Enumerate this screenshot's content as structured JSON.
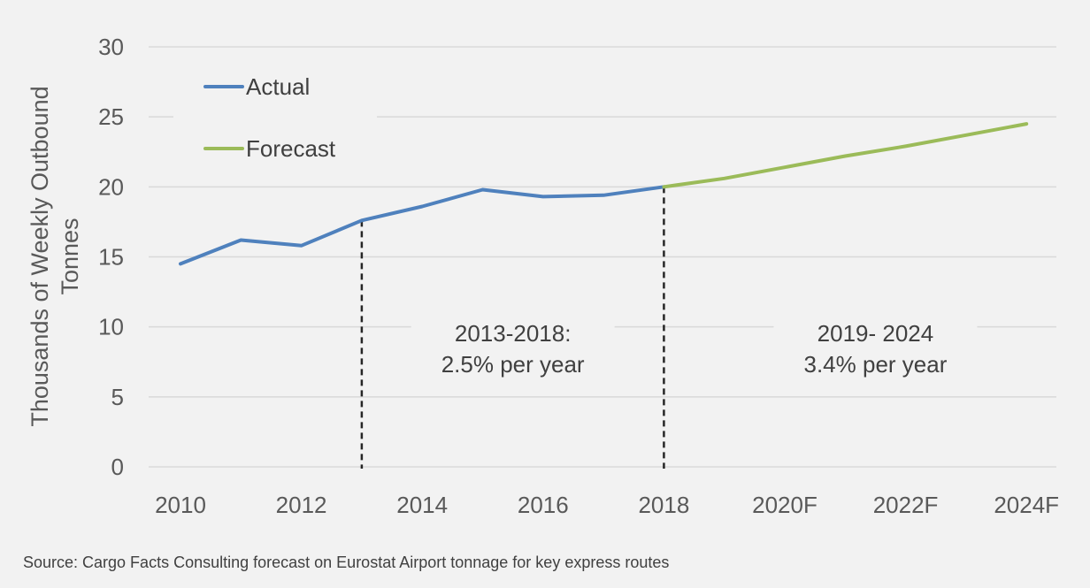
{
  "chart_data": {
    "type": "line",
    "x": [
      "2010",
      "2011",
      "2012",
      "2013",
      "2014",
      "2015",
      "2016",
      "2017",
      "2018",
      "2019",
      "2020F",
      "2021",
      "2022F",
      "2023",
      "2024F"
    ],
    "x_tick_labels": [
      "2010",
      "2012",
      "2014",
      "2016",
      "2018",
      "2020F",
      "2022F",
      "2024F"
    ],
    "series": [
      {
        "name": "Actual",
        "color": "#4f81bd",
        "values": [
          14.5,
          16.2,
          15.8,
          17.6,
          18.6,
          19.8,
          19.3,
          19.4,
          20.0,
          null,
          null,
          null,
          null,
          null,
          null
        ]
      },
      {
        "name": "Forecast",
        "color": "#9bbb59",
        "values": [
          null,
          null,
          null,
          null,
          null,
          null,
          null,
          null,
          20.0,
          20.6,
          21.4,
          22.2,
          22.9,
          23.7,
          24.5
        ]
      }
    ],
    "ylabel": "Thousands of Weekly Outbound Tonnes",
    "ylim": [
      0,
      30
    ],
    "y_ticks": [
      0,
      5,
      10,
      15,
      20,
      25,
      30
    ],
    "grid": true,
    "legend_position": "top-left",
    "markers": [
      {
        "x": "2013",
        "style": "dashed"
      },
      {
        "x": "2018",
        "style": "dashed"
      }
    ],
    "annotations": [
      {
        "lines": [
          "2013-2018:",
          "2.5% per year"
        ],
        "x": "2015.5",
        "y": 9
      },
      {
        "lines": [
          "2019- 2024",
          "3.4% per year"
        ],
        "x": "2021.5",
        "y": 9
      }
    ]
  },
  "source": "Source: Cargo Facts Consulting forecast on Eurostat Airport tonnage for key express routes"
}
